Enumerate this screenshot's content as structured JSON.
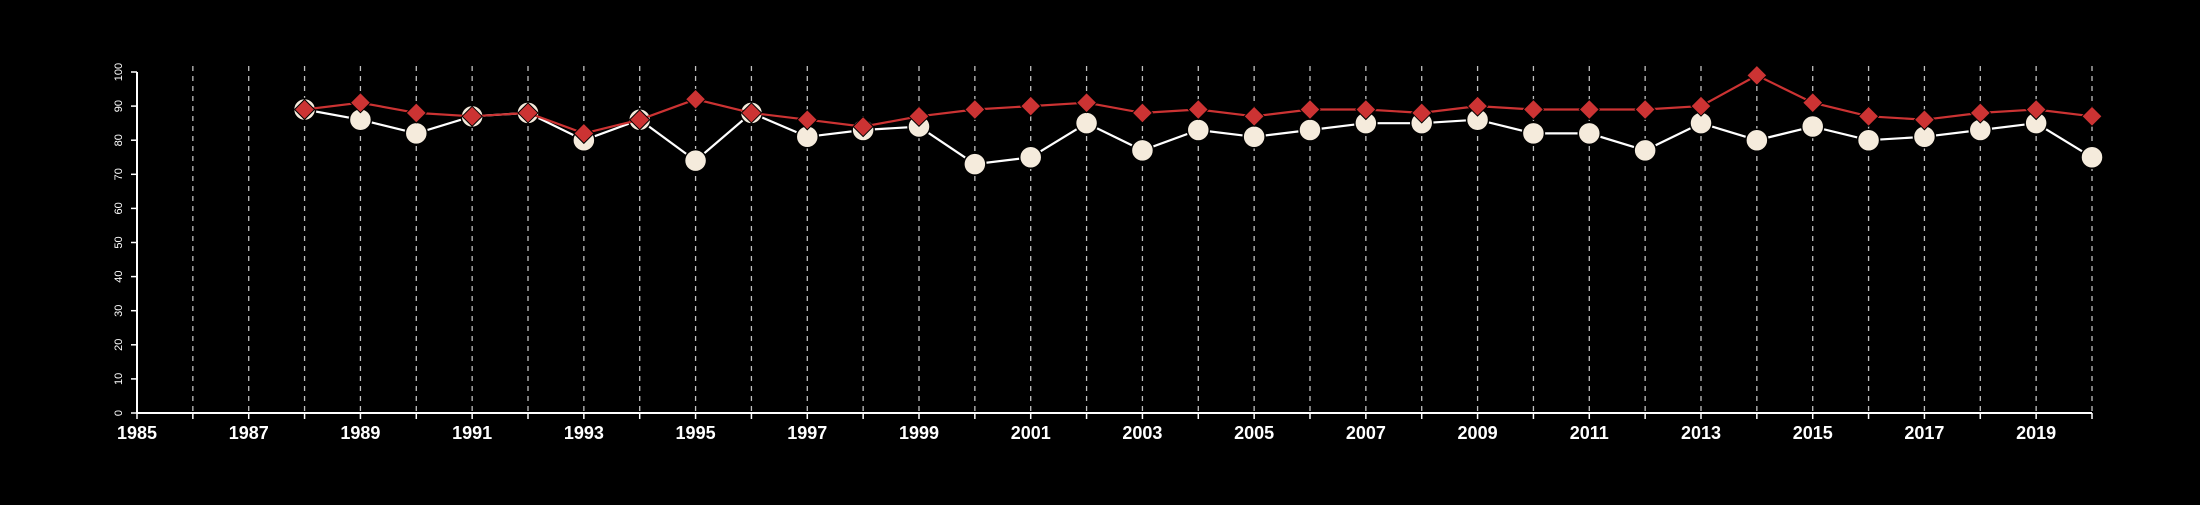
{
  "chart_data": {
    "type": "line",
    "title": "",
    "xlabel": "",
    "ylabel": "",
    "xlim": [
      1985,
      2020
    ],
    "ylim": [
      0,
      100
    ],
    "y_ticks": [
      0,
      10,
      20,
      30,
      40,
      50,
      60,
      70,
      80,
      90,
      100
    ],
    "x_ticks": [
      1985,
      1987,
      1989,
      1991,
      1993,
      1995,
      1997,
      1999,
      2001,
      2003,
      2005,
      2007,
      2009,
      2011,
      2013,
      2015,
      2017,
      2019
    ],
    "grid": "vertical dashed lines at each year",
    "legend": "none",
    "background_color": "#000000",
    "axis_color": "#ffffff",
    "x": [
      1988,
      1989,
      1990,
      1991,
      1992,
      1993,
      1994,
      1995,
      1996,
      1997,
      1998,
      1999,
      2000,
      2001,
      2002,
      2003,
      2004,
      2005,
      2006,
      2007,
      2008,
      2009,
      2010,
      2011,
      2012,
      2013,
      2014,
      2015,
      2016,
      2017,
      2018,
      2019,
      2020
    ],
    "series": [
      {
        "color": "#f5ebdc",
        "line_color": "#ffffff",
        "marker": "circle",
        "values": [
          89,
          86,
          82,
          87,
          88,
          80,
          86,
          74,
          88,
          81,
          83,
          84,
          73,
          75,
          85,
          77,
          83,
          81,
          83,
          85,
          85,
          86,
          82,
          82,
          77,
          85,
          80,
          84,
          80,
          81,
          83,
          85,
          75
        ]
      },
      {
        "color": "#cc3333",
        "line_color": "#cc3333",
        "marker": "diamond",
        "values": [
          89,
          91,
          88,
          87,
          88,
          82,
          86,
          92,
          88,
          86,
          84,
          87,
          89,
          90,
          91,
          88,
          89,
          87,
          89,
          89,
          88,
          90,
          89,
          89,
          89,
          90,
          99,
          91,
          87,
          86,
          88,
          89,
          87
        ]
      }
    ]
  }
}
